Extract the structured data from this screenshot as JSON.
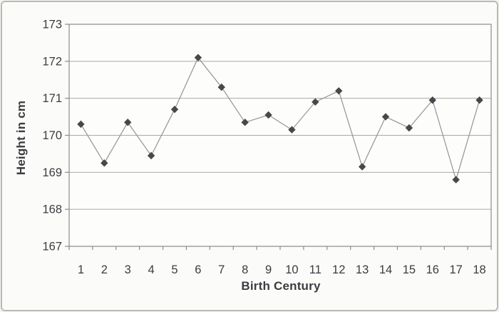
{
  "chart_data": {
    "type": "line",
    "title": "",
    "xlabel": "Birth Century",
    "ylabel": "Height in cm",
    "categories": [
      "1",
      "2",
      "3",
      "4",
      "5",
      "6",
      "7",
      "8",
      "9",
      "10",
      "11",
      "12",
      "13",
      "14",
      "15",
      "16",
      "17",
      "18"
    ],
    "series": [
      {
        "name": "Height",
        "values": [
          170.3,
          169.25,
          170.35,
          169.45,
          170.7,
          172.1,
          171.3,
          170.35,
          170.55,
          170.15,
          170.9,
          171.2,
          169.15,
          170.5,
          170.2,
          170.95,
          168.8,
          170.95
        ]
      }
    ],
    "ylim": [
      167,
      173
    ],
    "yticks": [
      167,
      168,
      169,
      170,
      171,
      172,
      173
    ],
    "grid": "horizontal",
    "legend_position": "none",
    "marker_shape": "diamond",
    "colors": {
      "marker": "#47474c",
      "line": "#949494",
      "gridline": "#a9a9a7",
      "axis_box": "#8c8c8a",
      "tick": "#8c8c8a",
      "tick_text": "#3c3c41",
      "plot_fill": "#fdfdfc"
    }
  }
}
